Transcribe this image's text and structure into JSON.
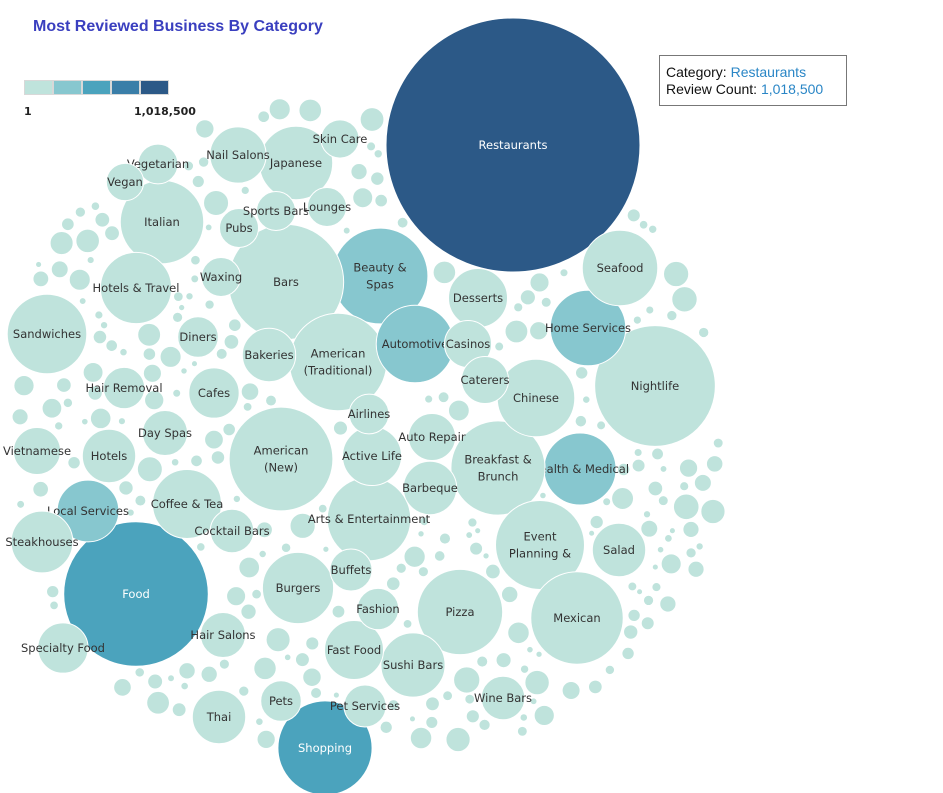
{
  "chart_data": {
    "type": "bubble",
    "title": "Most Reviewed Business By Category",
    "legend": {
      "min_label": "1",
      "max_label": "1,018,500",
      "colors": [
        "#bfe3dc",
        "#87c7cf",
        "#4ba3bd",
        "#3a7ea8",
        "#2c5987"
      ]
    },
    "tooltip": {
      "category_label": "Category:",
      "category_value": "Restaurants",
      "count_label": "Review Count:",
      "count_value": "1,018,500"
    },
    "categories": [
      {
        "name": "Restaurants",
        "value": 1018500,
        "label": [
          "Restaurants"
        ]
      },
      {
        "name": "Food",
        "value": 330000,
        "label": [
          "Food"
        ]
      },
      {
        "name": "Shopping",
        "value": 140000,
        "label": [
          "Shopping"
        ]
      },
      {
        "name": "Beauty & Spas",
        "value": 145000,
        "label": [
          "Beauty &",
          "Spas"
        ]
      },
      {
        "name": "Nightlife",
        "value": 230000,
        "label": [
          "Nightlife"
        ]
      },
      {
        "name": "Bars",
        "value": 210000,
        "label": [
          "Bars"
        ]
      },
      {
        "name": "American (Traditional)",
        "value": 150000,
        "label": [
          "American",
          "(Traditional)"
        ]
      },
      {
        "name": "American (New)",
        "value": 170000,
        "label": [
          "American",
          "(New)"
        ]
      },
      {
        "name": "Automotive",
        "value": 95000,
        "label": [
          "Automotive"
        ]
      },
      {
        "name": "Home Services",
        "value": 90000,
        "label": [
          "Home Services"
        ]
      },
      {
        "name": "Health & Medical",
        "value": 82000,
        "label": [
          "Health & Medical"
        ]
      },
      {
        "name": "Local Services",
        "value": 60000,
        "label": [
          "Local Services"
        ]
      },
      {
        "name": "Breakfast & Brunch",
        "value": 140000,
        "label": [
          "Breakfast &",
          "Brunch"
        ]
      },
      {
        "name": "Event Planning &",
        "value": 125000,
        "label": [
          "Event",
          "Planning &"
        ]
      },
      {
        "name": "Arts & Entertainment",
        "value": 110000,
        "label": [
          "Arts & Entertainment"
        ]
      },
      {
        "name": "Pizza",
        "value": 115000,
        "label": [
          "Pizza"
        ]
      },
      {
        "name": "Mexican",
        "value": 135000,
        "label": [
          "Mexican"
        ]
      },
      {
        "name": "Italian",
        "value": 110000,
        "label": [
          "Italian"
        ]
      },
      {
        "name": "Sandwiches",
        "value": 100000,
        "label": [
          "Sandwiches"
        ]
      },
      {
        "name": "Chinese",
        "value": 95000,
        "label": [
          "Chinese"
        ]
      },
      {
        "name": "Japanese",
        "value": 85000,
        "label": [
          "Japanese"
        ]
      },
      {
        "name": "Burgers",
        "value": 80000,
        "label": [
          "Burgers"
        ]
      },
      {
        "name": "Hotels & Travel",
        "value": 80000,
        "label": [
          "Hotels & Travel"
        ]
      },
      {
        "name": "Coffee & Tea",
        "value": 75000,
        "label": [
          "Coffee & Tea"
        ]
      },
      {
        "name": "Seafood",
        "value": 90000,
        "label": [
          "Seafood"
        ]
      },
      {
        "name": "Sushi Bars",
        "value": 65000,
        "label": [
          "Sushi Bars"
        ]
      },
      {
        "name": "Desserts",
        "value": 55000,
        "label": [
          "Desserts"
        ]
      },
      {
        "name": "Fast Food",
        "value": 55000,
        "label": [
          "Fast Food"
        ]
      },
      {
        "name": "Active Life",
        "value": 55000,
        "label": [
          "Active Life"
        ]
      },
      {
        "name": "Barbeque",
        "value": 45000,
        "label": [
          "Barbeque"
        ]
      },
      {
        "name": "Nail Salons",
        "value": 50000,
        "label": [
          "Nail Salons"
        ]
      },
      {
        "name": "Hotels",
        "value": 45000,
        "label": [
          "Hotels"
        ]
      },
      {
        "name": "Steakhouses",
        "value": 60000,
        "label": [
          "Steakhouses"
        ]
      },
      {
        "name": "Specialty Food",
        "value": 40000,
        "label": [
          "Specialty Food"
        ]
      },
      {
        "name": "Salad",
        "value": 45000,
        "label": [
          "Salad"
        ]
      },
      {
        "name": "Thai",
        "value": 45000,
        "label": [
          "Thai"
        ]
      },
      {
        "name": "Bakeries",
        "value": 45000,
        "label": [
          "Bakeries"
        ]
      },
      {
        "name": "Cafes",
        "value": 40000,
        "label": [
          "Cafes"
        ]
      },
      {
        "name": "Casinos",
        "value": 35000,
        "label": [
          "Casinos"
        ]
      },
      {
        "name": "Caterers",
        "value": 35000,
        "label": [
          "Caterers"
        ]
      },
      {
        "name": "Day Spas",
        "value": 32000,
        "label": [
          "Day Spas"
        ]
      },
      {
        "name": "Vietnamese",
        "value": 35000,
        "label": [
          "Vietnamese"
        ]
      },
      {
        "name": "Auto Repair",
        "value": 35000,
        "label": [
          "Auto Repair"
        ]
      },
      {
        "name": "Wine Bars",
        "value": 30000,
        "label": [
          "Wine Bars"
        ]
      },
      {
        "name": "Pet Services",
        "value": 28000,
        "label": [
          "Pet Services"
        ]
      },
      {
        "name": "Hair Salons",
        "value": 32000,
        "label": [
          "Hair Salons"
        ]
      },
      {
        "name": "Cocktail Bars",
        "value": 30000,
        "label": [
          "Cocktail Bars"
        ]
      },
      {
        "name": "Buffets",
        "value": 28000,
        "label": [
          "Buffets"
        ]
      },
      {
        "name": "Fashion",
        "value": 27000,
        "label": [
          "Fashion"
        ]
      },
      {
        "name": "Pets",
        "value": 26000,
        "label": [
          "Pets"
        ]
      },
      {
        "name": "Airlines",
        "value": 25000,
        "label": [
          "Airlines"
        ]
      },
      {
        "name": "Hair Removal",
        "value": 27000,
        "label": [
          "Hair Removal"
        ]
      },
      {
        "name": "Diners",
        "value": 26000,
        "label": [
          "Diners"
        ]
      },
      {
        "name": "Waxing",
        "value": 24000,
        "label": [
          "Waxing"
        ]
      },
      {
        "name": "Pubs",
        "value": 24000,
        "label": [
          "Pubs"
        ]
      },
      {
        "name": "Sports Bars",
        "value": 24000,
        "label": [
          "Sports Bars"
        ]
      },
      {
        "name": "Lounges",
        "value": 24000,
        "label": [
          "Lounges"
        ]
      },
      {
        "name": "Skin Care",
        "value": 23000,
        "label": [
          "Skin Care"
        ]
      },
      {
        "name": "Vegetarian",
        "value": 25000,
        "label": [
          "Vegetarian"
        ]
      },
      {
        "name": "Vegan",
        "value": 22000,
        "label": [
          "Vegan"
        ]
      }
    ]
  }
}
